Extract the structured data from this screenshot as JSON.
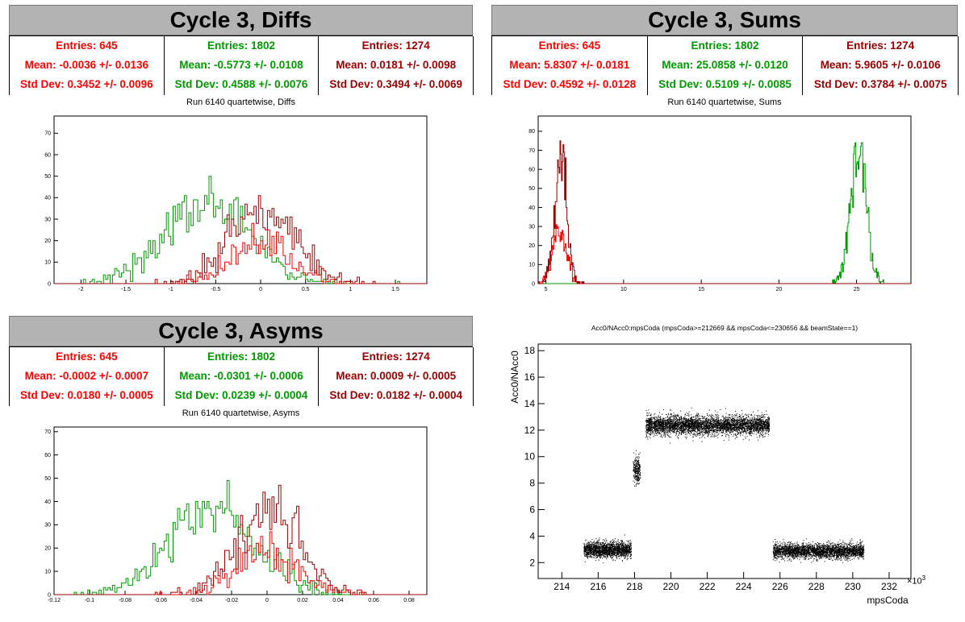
{
  "colors": {
    "red": "#ff0000",
    "green": "#009900",
    "darkred": "#990000"
  },
  "panels": {
    "diffs": {
      "title": "Cycle 3, Diffs",
      "subtitle": "Run 6140 quartetwise, Diffs",
      "stats": [
        {
          "entries": "Entries: 645",
          "mean": "Mean: -0.0036 +/- 0.0136",
          "std": "Std Dev: 0.3452 +/- 0.0096"
        },
        {
          "entries": "Entries: 1802",
          "mean": "Mean: -0.5773 +/- 0.0108",
          "std": "Std Dev: 0.4588 +/- 0.0076"
        },
        {
          "entries": "Entries: 1274",
          "mean": "Mean: 0.0181 +/- 0.0098",
          "std": "Std Dev: 0.3494 +/- 0.0069"
        }
      ]
    },
    "sums": {
      "title": "Cycle 3, Sums",
      "subtitle": "Run 6140 quartetwise, Sums",
      "stats": [
        {
          "entries": "Entries: 645",
          "mean": "Mean: 5.8307 +/- 0.0181",
          "std": "Std Dev: 0.4592 +/- 0.0128"
        },
        {
          "entries": "Entries: 1802",
          "mean": "Mean: 25.0858 +/- 0.0120",
          "std": "Std Dev: 0.5109 +/- 0.0085"
        },
        {
          "entries": "Entries: 1274",
          "mean": "Mean: 5.9605 +/- 0.0106",
          "std": "Std Dev: 0.3784 +/- 0.0075"
        }
      ]
    },
    "asyms": {
      "title": "Cycle 3, Asyms",
      "subtitle": "Run 6140 quartetwise, Asyms",
      "stats": [
        {
          "entries": "Entries: 645",
          "mean": "Mean: -0.0002 +/- 0.0007",
          "std": "Std Dev: 0.0180 +/- 0.0005"
        },
        {
          "entries": "Entries: 1802",
          "mean": "Mean: -0.0301 +/- 0.0006",
          "std": "Std Dev: 0.0239 +/- 0.0004"
        },
        {
          "entries": "Entries: 1274",
          "mean": "Mean: 0.0009 +/- 0.0005",
          "std": "Std Dev: 0.0182 +/- 0.0004"
        }
      ]
    },
    "scatter": {
      "title": "Acc0/NAcc0:mpsCoda (mpsCoda>=212669 && mpsCoda<=230656 && beamState==1)",
      "xlabel": "mpsCoda",
      "ylabel": "Acc0/NAcc0",
      "xexp": "×10",
      "xexp_sup": "3"
    }
  },
  "chart_data": [
    {
      "type": "histogram",
      "xlim": [
        -2.3,
        1.85
      ],
      "ylim": [
        0,
        78
      ],
      "xticks": [
        -2,
        -1.5,
        -1,
        -0.5,
        0,
        0.5,
        1,
        1.5
      ],
      "yticks": [
        0,
        10,
        20,
        30,
        40,
        50,
        60,
        70
      ],
      "series": [
        {
          "color": "green",
          "entries": 1802,
          "mean": -0.5773,
          "std": 0.4588
        },
        {
          "color": "red",
          "entries": 645,
          "mean": -0.0036,
          "std": 0.3452
        },
        {
          "color": "darkred",
          "entries": 1274,
          "mean": 0.0181,
          "std": 0.3494
        }
      ]
    },
    {
      "type": "histogram",
      "xlim": [
        4.5,
        28.5
      ],
      "ylim": [
        0,
        88
      ],
      "xticks": [
        5,
        10,
        15,
        20,
        25
      ],
      "yticks": [
        0,
        10,
        20,
        30,
        40,
        50,
        60,
        70,
        80
      ],
      "series": [
        {
          "color": "green",
          "entries": 1802,
          "mean": 25.0858,
          "std": 0.5109
        },
        {
          "color": "red",
          "entries": 645,
          "mean": 5.8307,
          "std": 0.4592
        },
        {
          "color": "darkred",
          "entries": 1274,
          "mean": 5.9605,
          "std": 0.3784
        }
      ]
    },
    {
      "type": "histogram",
      "xlim": [
        -0.12,
        0.09
      ],
      "ylim": [
        0,
        72
      ],
      "xticks": [
        -0.12,
        -0.1,
        -0.08,
        -0.06,
        -0.04,
        -0.02,
        0,
        0.02,
        0.04,
        0.06,
        0.08
      ],
      "yticks": [
        0,
        10,
        20,
        30,
        40,
        50,
        60,
        70
      ],
      "series": [
        {
          "color": "green",
          "entries": 1802,
          "mean": -0.0301,
          "std": 0.0239
        },
        {
          "color": "red",
          "entries": 645,
          "mean": -0.0002,
          "std": 0.018
        },
        {
          "color": "darkred",
          "entries": 1274,
          "mean": 0.0009,
          "std": 0.0182
        }
      ]
    },
    {
      "type": "scatter",
      "xlim": [
        212.7,
        233.2
      ],
      "ylim": [
        0.8,
        18.5
      ],
      "xticks": [
        214,
        216,
        218,
        220,
        222,
        224,
        226,
        228,
        230,
        232
      ],
      "yticks": [
        2,
        4,
        6,
        8,
        10,
        12,
        14,
        16,
        18
      ],
      "clusters": [
        {
          "x": [
            215.2,
            217.8
          ],
          "y_center": 3.0,
          "y_spread": 0.55,
          "n": 1800
        },
        {
          "x": [
            217.9,
            218.3
          ],
          "y_center": 9.0,
          "y_spread": 0.9,
          "n": 260
        },
        {
          "x": [
            218.6,
            225.4
          ],
          "y_center": 12.4,
          "y_spread": 0.65,
          "n": 4200
        },
        {
          "x": [
            225.6,
            230.6
          ],
          "y_center": 2.9,
          "y_spread": 0.5,
          "n": 3000
        }
      ]
    }
  ]
}
